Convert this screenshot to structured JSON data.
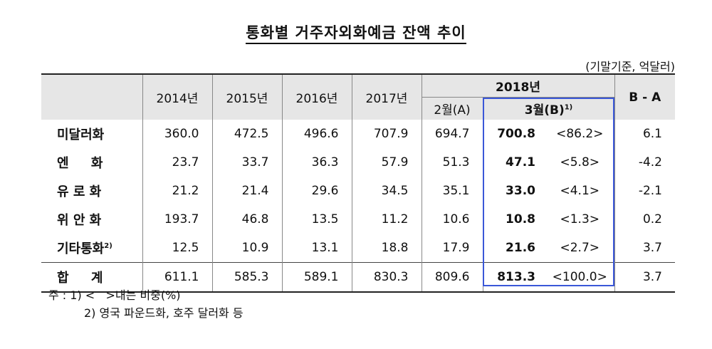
{
  "title": "통화별 거주자외화예금 잔액 추이",
  "unit": "(기말기준, 억달러)",
  "headers": {
    "years": [
      "2014년",
      "2015년",
      "2016년",
      "2017년"
    ],
    "year2018": "2018년",
    "feb": "2월(A)",
    "mar": "3월(B)",
    "mar_note": "1)",
    "diff": "B - A"
  },
  "rows": [
    {
      "label": "미달러화",
      "note": "",
      "v2014": "360.0",
      "v2015": "472.5",
      "v2016": "496.6",
      "v2017": "707.9",
      "feb": "694.7",
      "mar": "700.8",
      "share": "<86.2>",
      "diff": "6.1"
    },
    {
      "label": "엔     화",
      "note": "",
      "v2014": "23.7",
      "v2015": "33.7",
      "v2016": "36.3",
      "v2017": "57.9",
      "feb": "51.3",
      "mar": "47.1",
      "share": "<5.8>",
      "diff": "-4.2"
    },
    {
      "label": "유 로 화",
      "note": "",
      "v2014": "21.2",
      "v2015": "21.4",
      "v2016": "29.6",
      "v2017": "34.5",
      "feb": "35.1",
      "mar": "33.0",
      "share": "<4.1>",
      "diff": "-2.1"
    },
    {
      "label": "위 안 화",
      "note": "",
      "v2014": "193.7",
      "v2015": "46.8",
      "v2016": "13.5",
      "v2017": "11.2",
      "feb": "10.6",
      "mar": "10.8",
      "share": "<1.3>",
      "diff": "0.2"
    },
    {
      "label": "기타통화",
      "note": "2)",
      "v2014": "12.5",
      "v2015": "10.9",
      "v2016": "13.1",
      "v2017": "18.8",
      "feb": "17.9",
      "mar": "21.6",
      "share": "<2.7>",
      "diff": "3.7"
    }
  ],
  "total": {
    "label": "합     계",
    "v2014": "611.1",
    "v2015": "585.3",
    "v2016": "589.1",
    "v2017": "830.3",
    "feb": "809.6",
    "mar": "813.3",
    "share": "<100.0>",
    "diff": "3.7"
  },
  "notes": {
    "n1": "주 : 1) <   >내는 비중(%)",
    "n2": "2) 영국 파운드화, 호주 달러화 등"
  },
  "colors": {
    "header_bg": "#e6e6e6",
    "highlight_border": "#3a57d8"
  }
}
